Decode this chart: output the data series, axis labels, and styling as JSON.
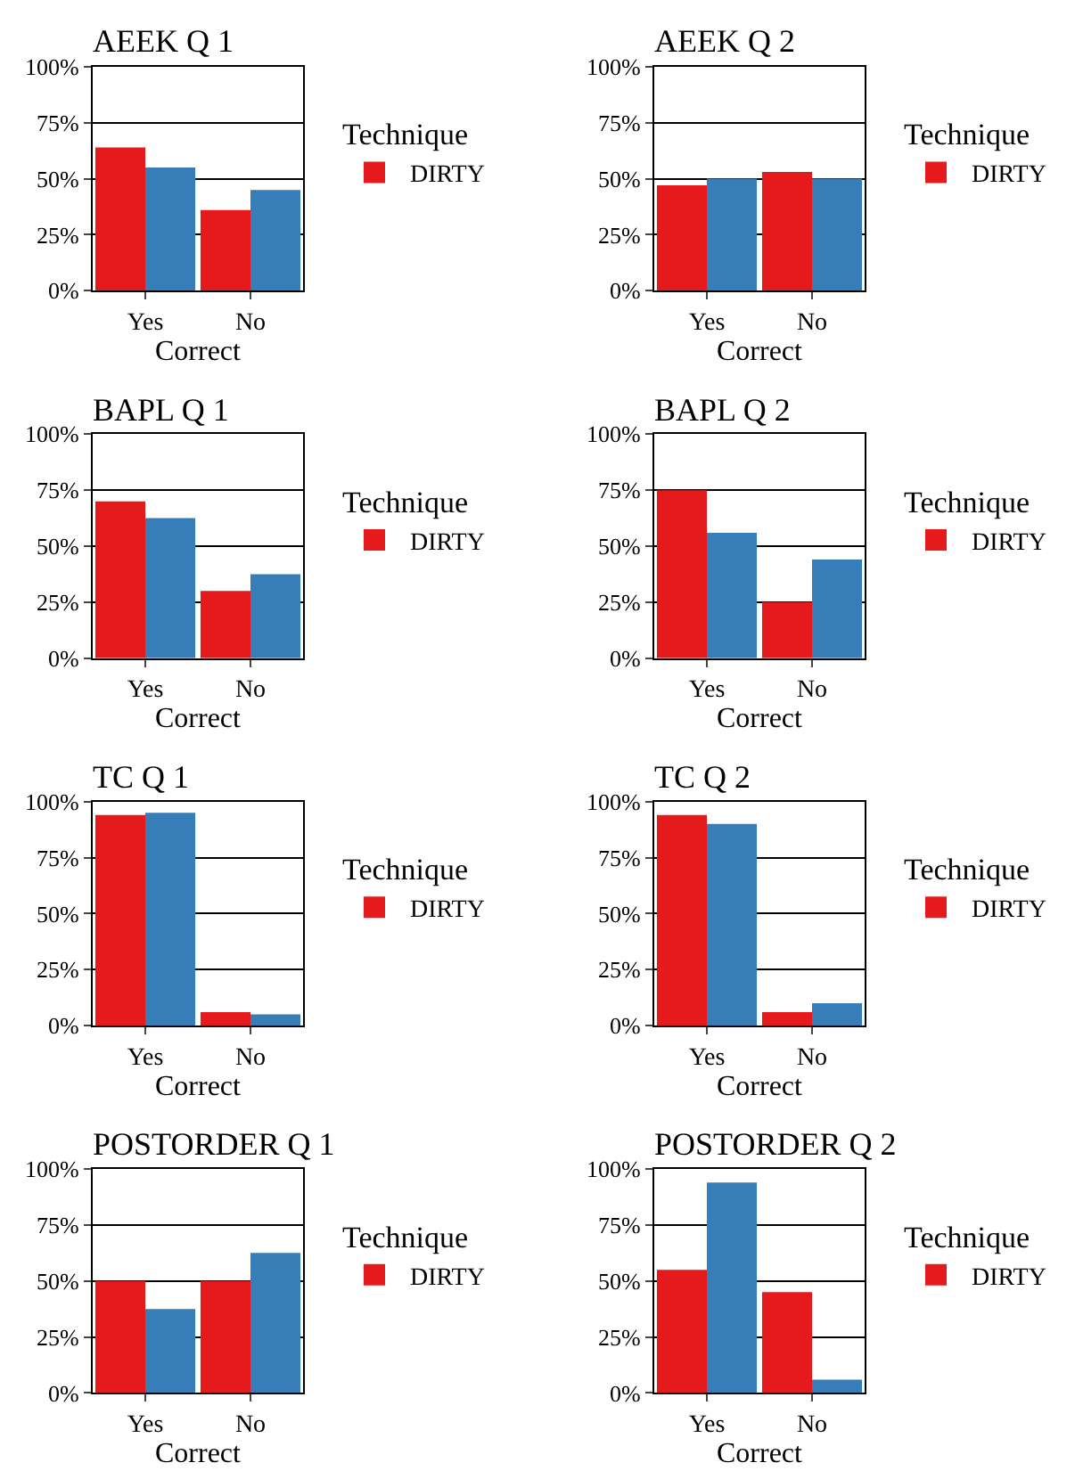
{
  "chart_data": [
    {
      "type": "bar",
      "title": "AEEK Q 1",
      "xlabel": "Correct",
      "categories": [
        "Yes",
        "No"
      ],
      "legend": "right",
      "legend_title": "Technique",
      "grid": "y",
      "ylim": [
        0,
        100
      ],
      "yticks": [
        {
          "value": 0,
          "label": "0%"
        },
        {
          "value": 25,
          "label": "25%"
        },
        {
          "value": 50,
          "label": "50%"
        },
        {
          "value": 75,
          "label": "75%"
        },
        {
          "value": 100,
          "label": "100%"
        }
      ],
      "series": [
        {
          "name": "DIRTY",
          "color": "#e41a1c",
          "values": [
            64,
            36
          ]
        },
        {
          "color": "#377eb8",
          "values": [
            55,
            45
          ]
        }
      ]
    },
    {
      "type": "bar",
      "title": "AEEK Q 2",
      "xlabel": "Correct",
      "categories": [
        "Yes",
        "No"
      ],
      "legend": "right",
      "legend_title": "Technique",
      "grid": "y",
      "ylim": [
        0,
        100
      ],
      "yticks": [
        {
          "value": 0,
          "label": "0%"
        },
        {
          "value": 25,
          "label": "25%"
        },
        {
          "value": 50,
          "label": "50%"
        },
        {
          "value": 75,
          "label": "75%"
        },
        {
          "value": 100,
          "label": "100%"
        }
      ],
      "series": [
        {
          "name": "DIRTY",
          "color": "#e41a1c",
          "values": [
            47,
            53
          ]
        },
        {
          "color": "#377eb8",
          "values": [
            50,
            50
          ]
        }
      ]
    },
    {
      "type": "bar",
      "title": "BAPL Q 1",
      "xlabel": "Correct",
      "categories": [
        "Yes",
        "No"
      ],
      "legend": "right",
      "legend_title": "Technique",
      "grid": "y",
      "ylim": [
        0,
        100
      ],
      "yticks": [
        {
          "value": 0,
          "label": "0%"
        },
        {
          "value": 25,
          "label": "25%"
        },
        {
          "value": 50,
          "label": "50%"
        },
        {
          "value": 75,
          "label": "75%"
        },
        {
          "value": 100,
          "label": "100%"
        }
      ],
      "series": [
        {
          "name": "DIRTY",
          "color": "#e41a1c",
          "values": [
            70,
            30
          ]
        },
        {
          "color": "#377eb8",
          "values": [
            62.5,
            37.5
          ]
        }
      ]
    },
    {
      "type": "bar",
      "title": "BAPL Q 2",
      "xlabel": "Correct",
      "categories": [
        "Yes",
        "No"
      ],
      "legend": "right",
      "legend_title": "Technique",
      "grid": "y",
      "ylim": [
        0,
        100
      ],
      "yticks": [
        {
          "value": 0,
          "label": "0%"
        },
        {
          "value": 25,
          "label": "25%"
        },
        {
          "value": 50,
          "label": "50%"
        },
        {
          "value": 75,
          "label": "75%"
        },
        {
          "value": 100,
          "label": "100%"
        }
      ],
      "series": [
        {
          "name": "DIRTY",
          "color": "#e41a1c",
          "values": [
            75,
            25
          ]
        },
        {
          "color": "#377eb8",
          "values": [
            56,
            44
          ]
        }
      ]
    },
    {
      "type": "bar",
      "title": "TC Q 1",
      "xlabel": "Correct",
      "categories": [
        "Yes",
        "No"
      ],
      "legend": "right",
      "legend_title": "Technique",
      "grid": "y",
      "ylim": [
        0,
        100
      ],
      "yticks": [
        {
          "value": 0,
          "label": "0%"
        },
        {
          "value": 25,
          "label": "25%"
        },
        {
          "value": 50,
          "label": "50%"
        },
        {
          "value": 75,
          "label": "75%"
        },
        {
          "value": 100,
          "label": "100%"
        }
      ],
      "series": [
        {
          "name": "DIRTY",
          "color": "#e41a1c",
          "values": [
            94,
            6
          ]
        },
        {
          "color": "#377eb8",
          "values": [
            95,
            5
          ]
        }
      ]
    },
    {
      "type": "bar",
      "title": "TC Q 2",
      "xlabel": "Correct",
      "categories": [
        "Yes",
        "No"
      ],
      "legend": "right",
      "legend_title": "Technique",
      "grid": "y",
      "ylim": [
        0,
        100
      ],
      "yticks": [
        {
          "value": 0,
          "label": "0%"
        },
        {
          "value": 25,
          "label": "25%"
        },
        {
          "value": 50,
          "label": "50%"
        },
        {
          "value": 75,
          "label": "75%"
        },
        {
          "value": 100,
          "label": "100%"
        }
      ],
      "series": [
        {
          "name": "DIRTY",
          "color": "#e41a1c",
          "values": [
            94,
            6
          ]
        },
        {
          "color": "#377eb8",
          "values": [
            90,
            10
          ]
        }
      ]
    },
    {
      "type": "bar",
      "title": "POSTORDER Q 1",
      "xlabel": "Correct",
      "categories": [
        "Yes",
        "No"
      ],
      "legend": "right",
      "legend_title": "Technique",
      "grid": "y",
      "ylim": [
        0,
        100
      ],
      "yticks": [
        {
          "value": 0,
          "label": "0%"
        },
        {
          "value": 25,
          "label": "25%"
        },
        {
          "value": 50,
          "label": "50%"
        },
        {
          "value": 75,
          "label": "75%"
        },
        {
          "value": 100,
          "label": "100%"
        }
      ],
      "series": [
        {
          "name": "DIRTY",
          "color": "#e41a1c",
          "values": [
            50,
            50
          ]
        },
        {
          "color": "#377eb8",
          "values": [
            37.5,
            62.5
          ]
        }
      ]
    },
    {
      "type": "bar",
      "title": "POSTORDER Q 2",
      "xlabel": "Correct",
      "categories": [
        "Yes",
        "No"
      ],
      "legend": "right",
      "legend_title": "Technique",
      "grid": "y",
      "ylim": [
        0,
        100
      ],
      "yticks": [
        {
          "value": 0,
          "label": "0%"
        },
        {
          "value": 25,
          "label": "25%"
        },
        {
          "value": 50,
          "label": "50%"
        },
        {
          "value": 75,
          "label": "75%"
        },
        {
          "value": 100,
          "label": "100%"
        }
      ],
      "series": [
        {
          "name": "DIRTY",
          "color": "#e41a1c",
          "values": [
            55,
            45
          ]
        },
        {
          "color": "#377eb8",
          "values": [
            94,
            6
          ]
        }
      ]
    }
  ]
}
